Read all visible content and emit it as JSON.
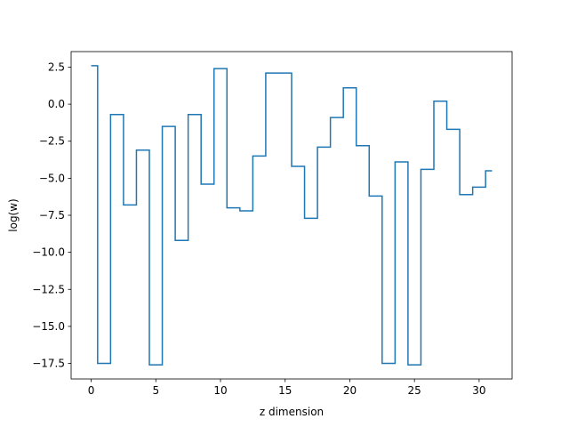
{
  "chart_data": {
    "type": "line",
    "drawstyle": "steps-mid",
    "title": "",
    "xlabel": "z dimension",
    "ylabel": "log(w)",
    "xlim": [
      -1.55,
      32.55
    ],
    "ylim": [
      -18.55,
      3.55
    ],
    "xticks": [
      0,
      5,
      10,
      15,
      20,
      25,
      30
    ],
    "xtick_labels": [
      "0",
      "5",
      "10",
      "15",
      "20",
      "25",
      "30"
    ],
    "yticks": [
      2.5,
      0.0,
      -2.5,
      -5.0,
      -7.5,
      -10.0,
      -12.5,
      -15.0,
      -17.5
    ],
    "ytick_labels": [
      "2.5",
      "0.0",
      "−2.5",
      "−5.0",
      "−7.5",
      "−10.0",
      "−12.5",
      "−15.0",
      "−17.5"
    ],
    "grid": false,
    "legend": "none",
    "color": "#1f77b4",
    "series": [
      {
        "x": [
          0,
          1,
          2,
          3,
          4,
          5,
          6,
          7,
          8,
          9,
          10,
          11,
          12,
          13,
          14,
          15,
          16,
          17,
          18,
          19,
          20,
          21,
          22,
          23,
          24,
          25,
          26,
          27,
          28,
          29,
          30,
          31
        ],
        "values": [
          2.6,
          -17.5,
          -0.7,
          -6.8,
          -3.1,
          -17.6,
          -1.5,
          -9.2,
          -0.7,
          -5.4,
          2.4,
          -7.0,
          -7.2,
          -3.5,
          2.1,
          2.1,
          -4.2,
          -7.7,
          -2.9,
          -0.9,
          1.1,
          -2.8,
          -6.2,
          -17.5,
          -3.9,
          -17.6,
          -4.4,
          0.2,
          -1.7,
          -6.1,
          -5.6,
          -4.5
        ]
      }
    ]
  }
}
